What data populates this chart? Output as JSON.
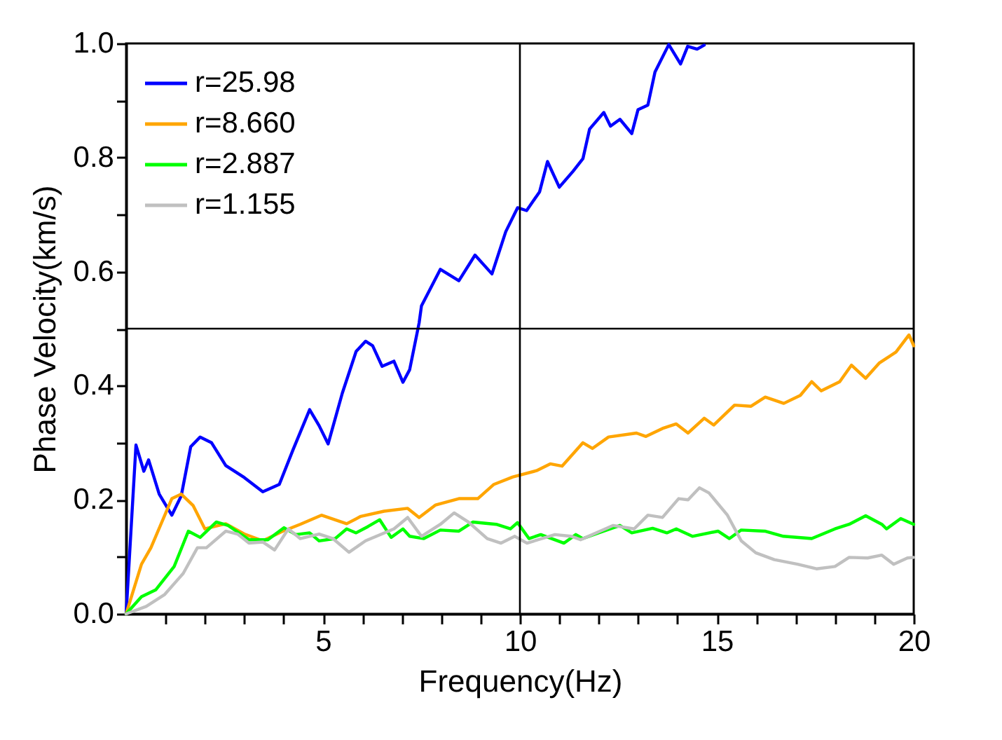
{
  "chart_data": {
    "type": "line",
    "xlabel": "Frequency(Hz)",
    "ylabel": "Phase Velocity(km/s)",
    "xlim": [
      0,
      20
    ],
    "ylim": [
      0,
      1
    ],
    "xticks": [
      {
        "value": 1,
        "label": null
      },
      {
        "value": 2,
        "label": null
      },
      {
        "value": 3,
        "label": null
      },
      {
        "value": 4,
        "label": null
      },
      5,
      {
        "value": 6,
        "label": null
      },
      {
        "value": 7,
        "label": null
      },
      {
        "value": 8,
        "label": null
      },
      {
        "value": 9,
        "label": null
      },
      10,
      {
        "value": 11,
        "label": null
      },
      {
        "value": 12,
        "label": null
      },
      {
        "value": 13,
        "label": null
      },
      {
        "value": 14,
        "label": null
      },
      15,
      {
        "value": 16,
        "label": null
      },
      {
        "value": 17,
        "label": null
      },
      {
        "value": 18,
        "label": null
      },
      {
        "value": 19,
        "label": null
      },
      20
    ],
    "yticks": [
      {
        "value": 0,
        "label": "0.0"
      },
      {
        "value": 0.1,
        "label": null
      },
      {
        "value": 0.2,
        "label": "0.2"
      },
      {
        "value": 0.3,
        "label": null
      },
      {
        "value": 0.4,
        "label": "0.4"
      },
      {
        "value": 0.5,
        "label": null
      },
      {
        "value": 0.6,
        "label": "0.6"
      },
      {
        "value": 0.7,
        "label": null
      },
      {
        "value": 0.8,
        "label": "0.8"
      },
      {
        "value": 0.9,
        "label": null
      },
      {
        "value": 1,
        "label": "1.0"
      }
    ],
    "legend": "top left",
    "grid": false,
    "line_style": "solid",
    "marker": "none",
    "ref_lines": [
      {
        "axis": "x",
        "value": 10,
        "color": "#000000"
      },
      {
        "axis": "y",
        "value": 0.5,
        "color": "#000000"
      }
    ],
    "series": [
      {
        "name": "r=25.98",
        "color": "#0000ff",
        "x": [
          0,
          0.25,
          0.45,
          0.57,
          0.84,
          1.16,
          1.4,
          1.64,
          1.88,
          2.17,
          2.53,
          3.0,
          3.47,
          3.89,
          4.24,
          4.66,
          4.9,
          5.13,
          5.49,
          5.84,
          6.08,
          6.26,
          6.5,
          6.8,
          7.03,
          7.2,
          7.44,
          7.5,
          7.98,
          8.45,
          8.86,
          9.29,
          9.64,
          9.94,
          10.17,
          10.5,
          10.7,
          11.0,
          11.35,
          11.6,
          11.77,
          12.13,
          12.3,
          12.54,
          12.84,
          13.0,
          13.25,
          13.43,
          13.78,
          14.08,
          14.26,
          14.5,
          14.68
        ],
        "values": [
          0,
          0.296,
          0.25,
          0.27,
          0.21,
          0.173,
          0.207,
          0.293,
          0.31,
          0.3,
          0.26,
          0.239,
          0.214,
          0.227,
          0.288,
          0.358,
          0.33,
          0.298,
          0.387,
          0.46,
          0.478,
          0.47,
          0.434,
          0.443,
          0.406,
          0.428,
          0.51,
          0.54,
          0.604,
          0.584,
          0.629,
          0.596,
          0.67,
          0.712,
          0.707,
          0.74,
          0.793,
          0.748,
          0.776,
          0.798,
          0.85,
          0.879,
          0.855,
          0.867,
          0.842,
          0.884,
          0.892,
          0.95,
          0.998,
          0.964,
          0.995,
          0.99,
          0.997
        ]
      },
      {
        "name": "r=8.660",
        "color": "#ffa500",
        "x": [
          0,
          0.39,
          0.63,
          1.16,
          1.4,
          1.7,
          2.0,
          2.53,
          3.0,
          3.47,
          3.95,
          4.42,
          4.96,
          5.6,
          5.96,
          6.55,
          7.15,
          7.44,
          7.86,
          8.45,
          8.93,
          9.34,
          9.82,
          10.42,
          10.77,
          11.07,
          11.6,
          11.84,
          12.25,
          12.96,
          13.2,
          13.62,
          13.97,
          14.27,
          14.68,
          14.92,
          15.45,
          15.87,
          16.23,
          16.7,
          17.12,
          17.41,
          17.65,
          18.12,
          18.42,
          18.78,
          19.13,
          19.55,
          19.88,
          20.0
        ],
        "values": [
          0,
          0.087,
          0.116,
          0.202,
          0.21,
          0.19,
          0.149,
          0.158,
          0.14,
          0.128,
          0.144,
          0.157,
          0.173,
          0.158,
          0.171,
          0.18,
          0.185,
          0.169,
          0.191,
          0.202,
          0.202,
          0.227,
          0.24,
          0.251,
          0.263,
          0.259,
          0.3,
          0.29,
          0.31,
          0.317,
          0.311,
          0.325,
          0.333,
          0.317,
          0.343,
          0.331,
          0.366,
          0.364,
          0.38,
          0.369,
          0.383,
          0.407,
          0.391,
          0.407,
          0.436,
          0.413,
          0.44,
          0.459,
          0.489,
          0.47
        ]
      },
      {
        "name": "r=2.887",
        "color": "#00ff00",
        "x": [
          0,
          0.39,
          0.75,
          1.22,
          1.58,
          1.88,
          2.29,
          2.59,
          3.12,
          3.6,
          4.01,
          4.31,
          4.66,
          4.9,
          5.31,
          5.6,
          5.84,
          6.14,
          6.44,
          6.73,
          7.03,
          7.2,
          7.56,
          7.98,
          8.45,
          8.81,
          9.4,
          9.76,
          9.94,
          10.23,
          10.53,
          11.12,
          11.42,
          11.6,
          12.0,
          12.54,
          12.84,
          13.37,
          13.73,
          13.97,
          14.38,
          15.03,
          15.32,
          15.62,
          16.22,
          16.69,
          17.41,
          18.0,
          18.36,
          18.78,
          19.19,
          19.31,
          19.67,
          20.0
        ],
        "values": [
          0,
          0.03,
          0.042,
          0.083,
          0.145,
          0.134,
          0.161,
          0.155,
          0.13,
          0.13,
          0.151,
          0.139,
          0.142,
          0.128,
          0.132,
          0.149,
          0.142,
          0.153,
          0.165,
          0.134,
          0.149,
          0.136,
          0.132,
          0.147,
          0.145,
          0.161,
          0.157,
          0.149,
          0.16,
          0.132,
          0.139,
          0.124,
          0.139,
          0.132,
          0.142,
          0.155,
          0.142,
          0.15,
          0.142,
          0.149,
          0.136,
          0.145,
          0.132,
          0.147,
          0.145,
          0.136,
          0.132,
          0.149,
          0.157,
          0.172,
          0.157,
          0.149,
          0.167,
          0.157
        ]
      },
      {
        "name": "r=1.155",
        "color": "#c0c0c0",
        "x": [
          0,
          0.51,
          0.98,
          1.45,
          1.81,
          2.04,
          2.53,
          2.83,
          3.12,
          3.47,
          3.77,
          4.12,
          4.42,
          4.9,
          5.25,
          5.66,
          6.08,
          6.8,
          7.15,
          7.5,
          7.98,
          8.33,
          8.69,
          9.17,
          9.52,
          9.87,
          10.18,
          10.89,
          11.3,
          11.54,
          12.37,
          12.9,
          13.25,
          13.62,
          14.03,
          14.27,
          14.56,
          14.8,
          15.27,
          15.62,
          15.99,
          16.46,
          17.05,
          17.53,
          18.0,
          18.36,
          18.83,
          19.19,
          19.49,
          19.84,
          20.0
        ],
        "values": [
          0,
          0.013,
          0.034,
          0.071,
          0.116,
          0.116,
          0.145,
          0.14,
          0.124,
          0.126,
          0.112,
          0.149,
          0.132,
          0.14,
          0.132,
          0.108,
          0.128,
          0.149,
          0.169,
          0.136,
          0.157,
          0.177,
          0.161,
          0.132,
          0.124,
          0.136,
          0.124,
          0.139,
          0.136,
          0.13,
          0.155,
          0.149,
          0.173,
          0.169,
          0.202,
          0.2,
          0.221,
          0.212,
          0.173,
          0.128,
          0.107,
          0.095,
          0.087,
          0.079,
          0.083,
          0.099,
          0.098,
          0.103,
          0.087,
          0.098,
          0.099
        ]
      }
    ]
  }
}
